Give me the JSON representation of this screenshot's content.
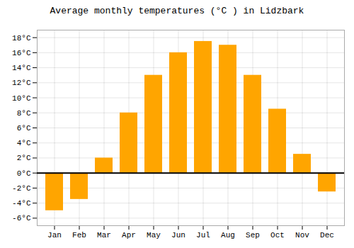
{
  "chart_data": {
    "type": "bar",
    "title": "Average monthly temperatures (°C ) in Lidzbark",
    "categories": [
      "Jan",
      "Feb",
      "Mar",
      "Apr",
      "May",
      "Jun",
      "Jul",
      "Aug",
      "Sep",
      "Oct",
      "Nov",
      "Dec"
    ],
    "values": [
      -5.0,
      -3.5,
      2.0,
      8.0,
      13.0,
      16.0,
      17.5,
      17.0,
      13.0,
      8.5,
      2.5,
      -2.5
    ],
    "color": "#FFA500",
    "ylim": [
      -7,
      19
    ],
    "yticks": [
      {
        "value": -6,
        "label": "-6°C"
      },
      {
        "value": -4,
        "label": "-4°C"
      },
      {
        "value": -2,
        "label": "-2°C"
      },
      {
        "value": 0,
        "label": "0°C"
      },
      {
        "value": 2,
        "label": "2°C"
      },
      {
        "value": 4,
        "label": "4°C"
      },
      {
        "value": 6,
        "label": "6°C"
      },
      {
        "value": 8,
        "label": "8°C"
      },
      {
        "value": 10,
        "label": "10°C"
      },
      {
        "value": 12,
        "label": "12°C"
      },
      {
        "value": 14,
        "label": "14°C"
      },
      {
        "value": 16,
        "label": "16°C"
      },
      {
        "value": 18,
        "label": "18°C"
      }
    ],
    "grid": true
  }
}
